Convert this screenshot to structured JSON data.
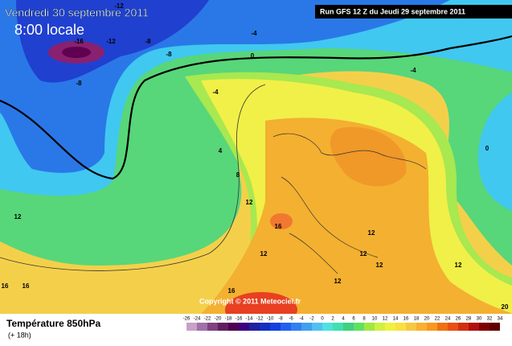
{
  "header": {
    "date": "Vendredi 30 septembre 2011",
    "time": "8:00 locale",
    "run": "Run GFS 12 Z du Jeudi 29 septembre 2011"
  },
  "copyright": "Copyright © 2011 Meteociel.fr",
  "footer": {
    "title": "Température 850hPa",
    "lead": "(+ 18h)"
  },
  "contour_labels": [
    -12,
    -16,
    -12,
    -8,
    -8,
    -8,
    -4,
    0,
    -4,
    -4,
    4,
    8,
    12,
    16,
    12,
    12,
    12,
    12,
    12,
    12,
    16,
    16,
    20,
    0,
    12,
    16
  ],
  "scale": {
    "labels": [
      -26,
      -24,
      -22,
      -20,
      -18,
      -16,
      -14,
      -12,
      -10,
      -8,
      -6,
      -4,
      -2,
      0,
      2,
      4,
      6,
      8,
      10,
      12,
      14,
      16,
      18,
      20,
      22,
      24,
      26,
      28,
      30,
      32,
      34
    ],
    "colors": [
      "#c8a0c8",
      "#a070a8",
      "#804080",
      "#602060",
      "#500050",
      "#3c0080",
      "#2020a0",
      "#1030c0",
      "#1040e0",
      "#2060f0",
      "#3080f0",
      "#40a0f0",
      "#50c0f0",
      "#50e0e0",
      "#40e0b0",
      "#40d080",
      "#60e060",
      "#a0e840",
      "#d0f040",
      "#f0f040",
      "#f8e040",
      "#f8c840",
      "#f8b030",
      "#f89820",
      "#f07010",
      "#e85010",
      "#d03010",
      "#b01010",
      "#800000",
      "#600000"
    ]
  }
}
